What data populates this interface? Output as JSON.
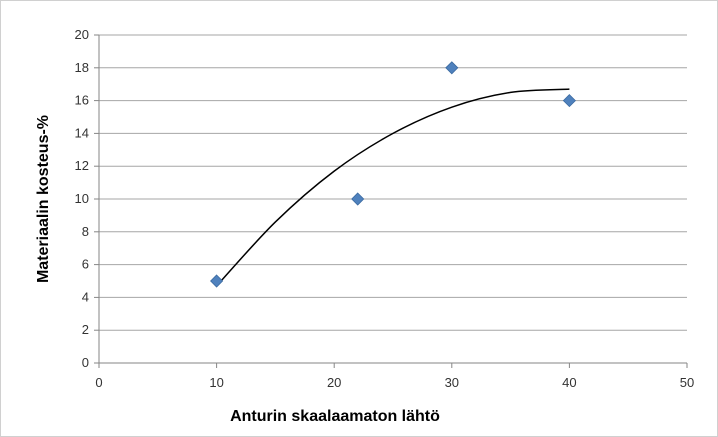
{
  "chart_data": {
    "type": "scatter",
    "title": "",
    "xlabel": "Anturin skaalaamaton lähtö",
    "ylabel": "Materiaalin kosteus-%",
    "xlim": [
      0,
      50
    ],
    "ylim": [
      0,
      20
    ],
    "x_ticks": [
      "0",
      "10",
      "20",
      "30",
      "40",
      "50"
    ],
    "y_ticks": [
      "0",
      "2",
      "4",
      "6",
      "8",
      "10",
      "12",
      "14",
      "16",
      "18",
      "20"
    ],
    "grid": "horizontal",
    "legend": "none",
    "series": [
      {
        "x": [
          10,
          22,
          30,
          40
        ],
        "y": [
          5,
          10,
          18,
          16
        ],
        "marker": "diamond",
        "color": "#4f81bd"
      }
    ],
    "trendline": {
      "type": "polynomial",
      "x": [
        10,
        15,
        20,
        25,
        30,
        35,
        40
      ],
      "y": [
        4.7,
        8.6,
        11.7,
        14.0,
        15.6,
        16.5,
        16.7
      ],
      "color": "#000000"
    }
  }
}
